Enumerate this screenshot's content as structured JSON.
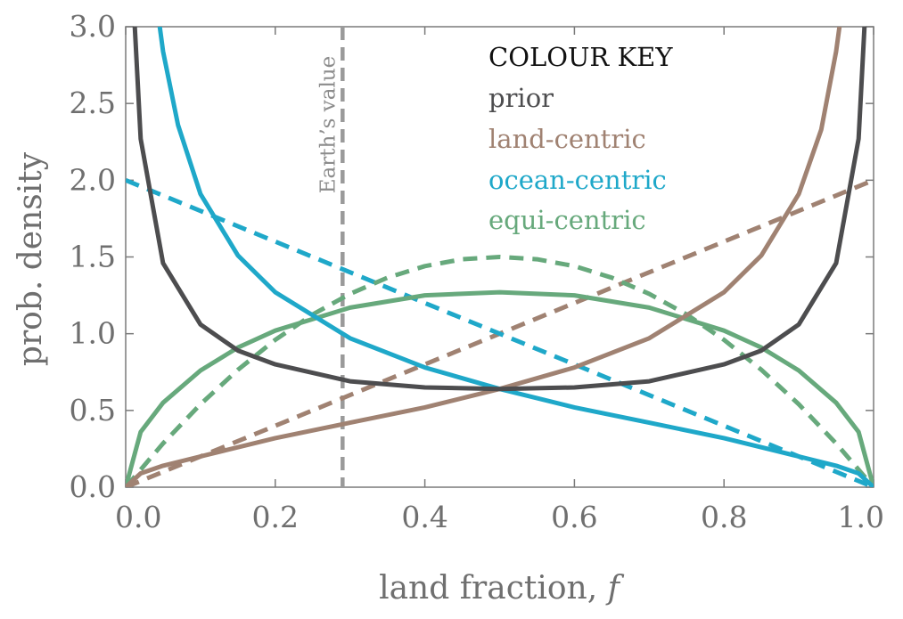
{
  "chart_data": {
    "type": "line",
    "title": "",
    "xlabel": "land fraction, ",
    "xlabel_symbol": "f",
    "ylabel": "prob. density",
    "xlim": [
      0.0,
      1.0
    ],
    "ylim": [
      0.0,
      3.0
    ],
    "x_ticks": [
      "0.0",
      "0.2",
      "0.4",
      "0.6",
      "0.8",
      "1.0"
    ],
    "y_ticks": [
      "0.0",
      "0.5",
      "1.0",
      "1.5",
      "2.0",
      "2.5",
      "3.0"
    ],
    "grid": false,
    "legend": {
      "title": "COLOUR KEY",
      "placement": "top-right",
      "entries": [
        {
          "label": "prior",
          "color": "#4d4d4f"
        },
        {
          "label": "land-centric",
          "color": "#a08272"
        },
        {
          "label": "ocean-centric",
          "color": "#1fa8c9"
        },
        {
          "label": "equi-centric",
          "color": "#67a97c"
        }
      ]
    },
    "reference_line": {
      "x": 0.29,
      "label": "Earth’s value",
      "color": "#9a9a9a",
      "style": "dashed"
    },
    "series": [
      {
        "name": "prior",
        "color": "#4d4d4f",
        "style": "solid",
        "x": [
          0.01,
          0.02,
          0.05,
          0.1,
          0.15,
          0.2,
          0.3,
          0.4,
          0.5,
          0.6,
          0.7,
          0.8,
          0.85,
          0.9,
          0.95,
          0.98,
          0.99
        ],
        "y": [
          3.2,
          2.27,
          1.46,
          1.06,
          0.89,
          0.8,
          0.69,
          0.65,
          0.64,
          0.65,
          0.69,
          0.8,
          0.89,
          1.06,
          1.46,
          2.27,
          3.2
        ]
      },
      {
        "name": "land-centric",
        "color": "#a08272",
        "style": "solid",
        "x": [
          0.0,
          0.02,
          0.05,
          0.1,
          0.2,
          0.3,
          0.4,
          0.5,
          0.6,
          0.7,
          0.8,
          0.85,
          0.9,
          0.93,
          0.95,
          0.96
        ],
        "y": [
          0.0,
          0.09,
          0.14,
          0.2,
          0.32,
          0.42,
          0.52,
          0.64,
          0.78,
          0.97,
          1.27,
          1.51,
          1.91,
          2.33,
          2.84,
          3.2
        ]
      },
      {
        "name": "ocean-centric",
        "color": "#1fa8c9",
        "style": "solid",
        "x": [
          0.04,
          0.05,
          0.07,
          0.1,
          0.15,
          0.2,
          0.3,
          0.4,
          0.5,
          0.6,
          0.7,
          0.8,
          0.9,
          0.95,
          0.98,
          1.0
        ],
        "y": [
          3.2,
          2.84,
          2.36,
          1.91,
          1.51,
          1.27,
          0.97,
          0.78,
          0.64,
          0.52,
          0.42,
          0.32,
          0.2,
          0.14,
          0.09,
          0.0
        ]
      },
      {
        "name": "equi-centric",
        "color": "#67a97c",
        "style": "solid",
        "x": [
          0.0,
          0.02,
          0.05,
          0.1,
          0.15,
          0.2,
          0.3,
          0.4,
          0.5,
          0.6,
          0.7,
          0.8,
          0.85,
          0.9,
          0.95,
          0.98,
          1.0
        ],
        "y": [
          0.0,
          0.36,
          0.55,
          0.76,
          0.91,
          1.02,
          1.17,
          1.25,
          1.27,
          1.25,
          1.17,
          1.02,
          0.91,
          0.76,
          0.55,
          0.36,
          0.0
        ]
      },
      {
        "name": "land-centric",
        "color": "#a08272",
        "style": "dashed",
        "x": [
          0.0,
          1.0
        ],
        "y": [
          0.0,
          2.0
        ]
      },
      {
        "name": "ocean-centric",
        "color": "#1fa8c9",
        "style": "dashed",
        "x": [
          0.0,
          1.0
        ],
        "y": [
          2.0,
          0.0
        ]
      },
      {
        "name": "equi-centric",
        "color": "#67a97c",
        "style": "dashed",
        "x": [
          0.0,
          0.05,
          0.1,
          0.15,
          0.2,
          0.25,
          0.3,
          0.35,
          0.4,
          0.45,
          0.5,
          0.55,
          0.6,
          0.65,
          0.7,
          0.75,
          0.8,
          0.85,
          0.9,
          0.95,
          1.0
        ],
        "y": [
          0.0,
          0.285,
          0.54,
          0.765,
          0.96,
          1.125,
          1.26,
          1.365,
          1.44,
          1.485,
          1.5,
          1.485,
          1.44,
          1.365,
          1.26,
          1.125,
          0.96,
          0.765,
          0.54,
          0.285,
          0.0
        ]
      }
    ]
  }
}
